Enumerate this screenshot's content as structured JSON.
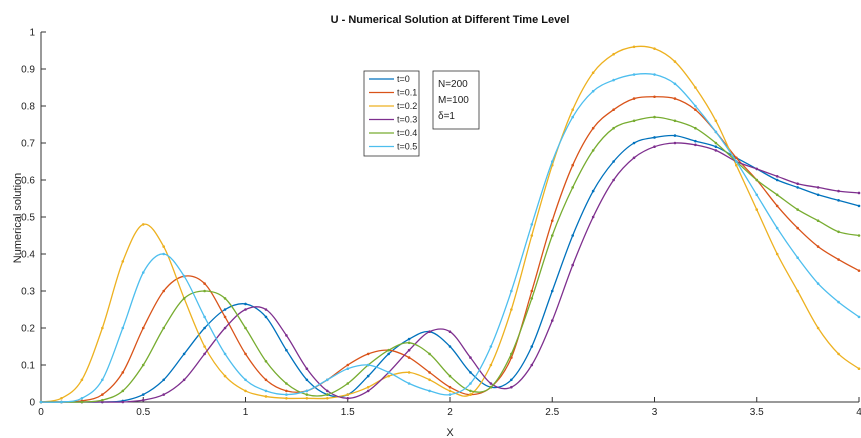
{
  "chart_data": {
    "type": "line",
    "title": "U - Numerical Solution at Different Time Level",
    "xlabel": "X",
    "ylabel": "Numerical solution",
    "xlim": [
      0,
      4
    ],
    "ylim": [
      0,
      1
    ],
    "x_ticks": [
      "0",
      "0.5",
      "1",
      "1.5",
      "2",
      "2.5",
      "3",
      "3.5",
      "4"
    ],
    "y_ticks": [
      "0",
      "0.1",
      "0.2",
      "0.3",
      "0.4",
      "0.5",
      "0.6",
      "0.7",
      "0.8",
      "0.9",
      "1"
    ],
    "grid": false,
    "legend_position": "upper-middle",
    "annotation": [
      "N=200",
      "M=100",
      "δ=1"
    ],
    "x": [
      0,
      0.1,
      0.2,
      0.3,
      0.4,
      0.5,
      0.6,
      0.7,
      0.8,
      0.9,
      1.0,
      1.1,
      1.2,
      1.3,
      1.4,
      1.5,
      1.6,
      1.7,
      1.8,
      1.9,
      2.0,
      2.1,
      2.2,
      2.3,
      2.4,
      2.5,
      2.6,
      2.7,
      2.8,
      2.9,
      3.0,
      3.1,
      3.2,
      3.3,
      3.4,
      3.5,
      3.6,
      3.7,
      3.8,
      3.9,
      4.0
    ],
    "series": [
      {
        "name": "t=0",
        "color": "#0072BD",
        "values": [
          0,
          0,
          0,
          0,
          0.003,
          0.02,
          0.06,
          0.13,
          0.2,
          0.25,
          0.265,
          0.23,
          0.14,
          0.06,
          0.02,
          0.02,
          0.07,
          0.13,
          0.17,
          0.19,
          0.15,
          0.08,
          0.04,
          0.06,
          0.15,
          0.3,
          0.45,
          0.57,
          0.65,
          0.7,
          0.715,
          0.72,
          0.705,
          0.69,
          0.66,
          0.63,
          0.6,
          0.58,
          0.56,
          0.545,
          0.53
        ]
      },
      {
        "name": "t=0.1",
        "color": "#D95319",
        "values": [
          0,
          0,
          0.003,
          0.02,
          0.08,
          0.2,
          0.3,
          0.34,
          0.32,
          0.23,
          0.13,
          0.06,
          0.03,
          0.03,
          0.06,
          0.1,
          0.13,
          0.14,
          0.12,
          0.08,
          0.04,
          0.02,
          0.04,
          0.12,
          0.3,
          0.49,
          0.64,
          0.74,
          0.79,
          0.82,
          0.825,
          0.82,
          0.79,
          0.73,
          0.66,
          0.6,
          0.53,
          0.47,
          0.42,
          0.385,
          0.355
        ]
      },
      {
        "name": "t=0.2",
        "color": "#EDB120",
        "values": [
          0,
          0.01,
          0.06,
          0.2,
          0.38,
          0.48,
          0.42,
          0.28,
          0.15,
          0.07,
          0.03,
          0.015,
          0.01,
          0.01,
          0.01,
          0.02,
          0.04,
          0.07,
          0.08,
          0.06,
          0.03,
          0.02,
          0.1,
          0.25,
          0.45,
          0.64,
          0.79,
          0.89,
          0.94,
          0.96,
          0.955,
          0.92,
          0.85,
          0.76,
          0.64,
          0.52,
          0.4,
          0.3,
          0.2,
          0.13,
          0.09
        ]
      },
      {
        "name": "t=0.3",
        "color": "#7E2F8E",
        "values": [
          0,
          0,
          0,
          0,
          0,
          0.005,
          0.02,
          0.06,
          0.13,
          0.2,
          0.25,
          0.25,
          0.18,
          0.09,
          0.03,
          0.01,
          0.03,
          0.08,
          0.14,
          0.19,
          0.19,
          0.12,
          0.05,
          0.04,
          0.1,
          0.22,
          0.37,
          0.5,
          0.6,
          0.66,
          0.69,
          0.7,
          0.695,
          0.68,
          0.65,
          0.63,
          0.61,
          0.59,
          0.58,
          0.57,
          0.565
        ]
      },
      {
        "name": "t=0.4",
        "color": "#77AC30",
        "values": [
          0,
          0,
          0,
          0.005,
          0.03,
          0.1,
          0.2,
          0.28,
          0.3,
          0.28,
          0.2,
          0.11,
          0.05,
          0.02,
          0.02,
          0.05,
          0.1,
          0.14,
          0.16,
          0.13,
          0.07,
          0.03,
          0.04,
          0.13,
          0.28,
          0.45,
          0.58,
          0.68,
          0.74,
          0.76,
          0.77,
          0.76,
          0.74,
          0.7,
          0.65,
          0.6,
          0.56,
          0.52,
          0.49,
          0.46,
          0.45
        ]
      },
      {
        "name": "t=0.5",
        "color": "#4DBEEE",
        "values": [
          0,
          0,
          0.01,
          0.06,
          0.2,
          0.35,
          0.4,
          0.34,
          0.23,
          0.13,
          0.06,
          0.03,
          0.02,
          0.03,
          0.06,
          0.09,
          0.1,
          0.08,
          0.05,
          0.03,
          0.02,
          0.05,
          0.15,
          0.3,
          0.48,
          0.65,
          0.77,
          0.84,
          0.87,
          0.885,
          0.885,
          0.86,
          0.8,
          0.73,
          0.65,
          0.56,
          0.47,
          0.39,
          0.32,
          0.27,
          0.23
        ]
      }
    ]
  }
}
